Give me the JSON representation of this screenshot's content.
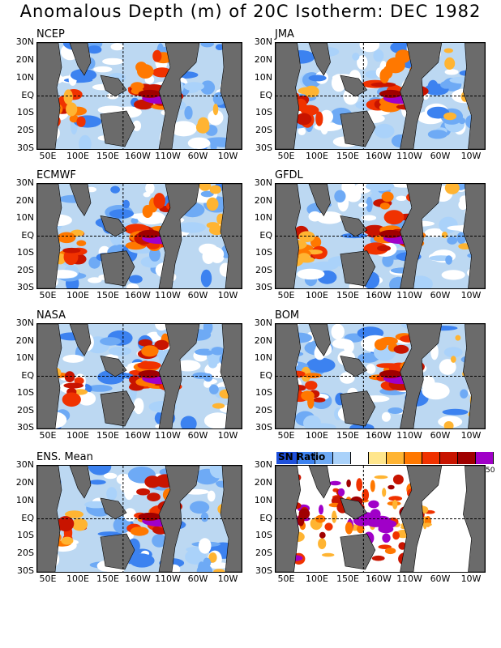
{
  "title": "Anomalous Depth (m) of 20C Isotherm: DEC 1982",
  "chart_data": {
    "type": "heatmap",
    "title": "Anomalous Depth (m) of 20C Isotherm: DEC 1982",
    "y_ticks": [
      "30N",
      "20N",
      "10N",
      "EQ",
      "10S",
      "20S",
      "30S"
    ],
    "x_ticks": [
      "50E",
      "100E",
      "150E",
      "160W",
      "110W",
      "60W",
      "10W"
    ],
    "ylim": [
      "30S",
      "30N"
    ],
    "panels": [
      {
        "label": "NCEP"
      },
      {
        "label": "JMA"
      },
      {
        "label": "ECMWF"
      },
      {
        "label": "GFDL"
      },
      {
        "label": "NASA"
      },
      {
        "label": "BOM"
      },
      {
        "label": "ENS. Mean"
      },
      {
        "label": "SN Ratio"
      }
    ],
    "colorbar": {
      "title": "SN Ratio",
      "max_label": "50",
      "colors": [
        "#1e50dc",
        "#3c82f0",
        "#6eaaf5",
        "#aad2fa",
        "#ffffff",
        "#ffe68c",
        "#ffb432",
        "#ff7800",
        "#f03200",
        "#c81400",
        "#a00000",
        "#a000c8"
      ]
    }
  }
}
